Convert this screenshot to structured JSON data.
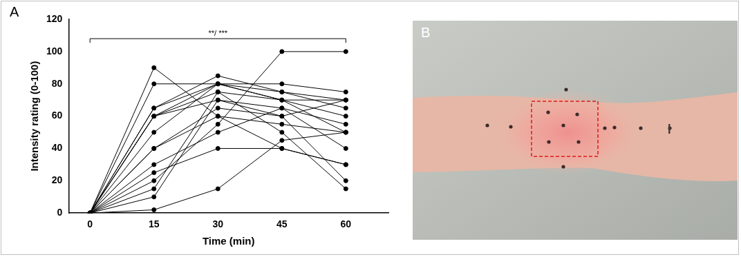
{
  "chart_data": {
    "type": "line",
    "panel": "A",
    "x_label": "Time (min)",
    "y_label": "Intensity rating (0-100)",
    "x": [
      0,
      15,
      30,
      45,
      60
    ],
    "series": [
      {
        "values": [
          0,
          90,
          60,
          55,
          50
        ],
        "color": "#000000"
      },
      {
        "values": [
          0,
          80,
          80,
          70,
          70
        ],
        "color": "#000000"
      },
      {
        "values": [
          0,
          65,
          85,
          75,
          65
        ],
        "color": "#000000"
      },
      {
        "values": [
          0,
          65,
          80,
          80,
          75
        ],
        "color": "#000000"
      },
      {
        "values": [
          0,
          60,
          75,
          70,
          60
        ],
        "color": "#000000"
      },
      {
        "values": [
          0,
          60,
          70,
          65,
          55
        ],
        "color": "#000000"
      },
      {
        "values": [
          0,
          50,
          80,
          70,
          50
        ],
        "color": "#000000"
      },
      {
        "values": [
          0,
          40,
          60,
          40,
          30
        ],
        "color": "#000000"
      },
      {
        "values": [
          0,
          40,
          65,
          60,
          20
        ],
        "color": "#000000"
      },
      {
        "values": [
          0,
          30,
          50,
          65,
          40
        ],
        "color": "#000000"
      },
      {
        "values": [
          0,
          25,
          40,
          40,
          30
        ],
        "color": "#000000"
      },
      {
        "values": [
          0,
          20,
          55,
          100,
          100
        ],
        "color": "#000000"
      },
      {
        "values": [
          0,
          15,
          75,
          50,
          15
        ],
        "color": "#000000"
      },
      {
        "values": [
          0,
          10,
          70,
          60,
          70
        ],
        "color": "#000000"
      },
      {
        "values": [
          0,
          2,
          15,
          45,
          50
        ],
        "color": "#000000"
      },
      {
        "values": [
          0,
          60,
          80,
          75,
          70
        ],
        "color": "#000000"
      }
    ],
    "marker": "circle",
    "xlim": [
      -5,
      70
    ],
    "xticks": [
      0,
      15,
      30,
      45,
      60
    ],
    "ylim": [
      0,
      120
    ],
    "yticks": [
      0,
      20,
      40,
      60,
      80,
      100,
      120
    ],
    "grid": false,
    "annotations": [
      {
        "text": "**/ ***",
        "x_start": 0,
        "x_end": 60,
        "y": 108
      }
    ]
  },
  "photo": {
    "panel": "B"
  }
}
